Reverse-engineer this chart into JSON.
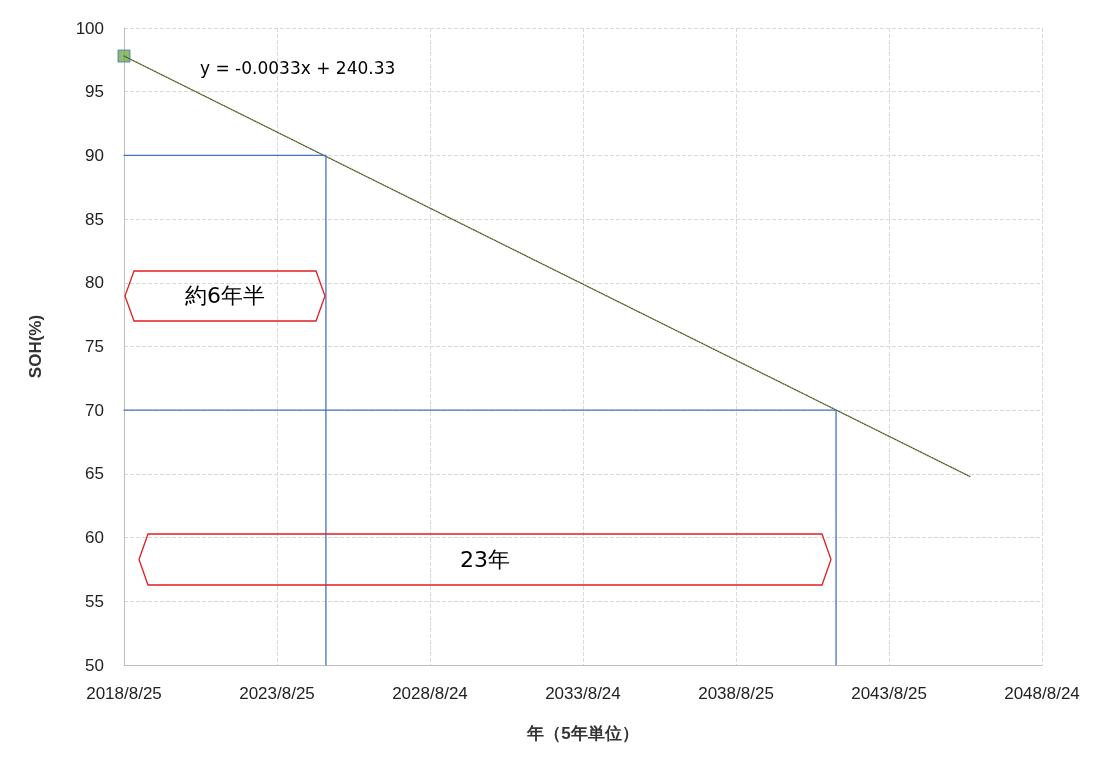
{
  "chart_data": {
    "type": "line",
    "xlabel": "年（5年単位）",
    "ylabel": "SOH(%)",
    "series": [
      {
        "type": "scatter",
        "color": "#70ad47",
        "marker": "square",
        "x": [
          "2018-08-25"
        ],
        "values": [
          97.8
        ]
      },
      {
        "color": "#4f6228",
        "line_style": "dotted",
        "marker": "none",
        "x": [
          "2018-08-25",
          "2046-04-15"
        ],
        "values": [
          97.8,
          64.8
        ]
      },
      {
        "color": "#4472c4",
        "line_style": "solid",
        "marker": "none",
        "x": [
          "2018-08-25",
          "2025-03-31",
          "2025-03-31"
        ],
        "values": [
          90,
          90,
          50
        ]
      },
      {
        "color": "#4472c4",
        "line_style": "solid",
        "marker": "none",
        "x": [
          "2018-08-25",
          "2041-12-01",
          "2041-12-01"
        ],
        "values": [
          70,
          70,
          50
        ]
      }
    ],
    "xlim": [
      "2018-08-25",
      "2048-08-24"
    ],
    "xticks": [
      {
        "value": "2018-08-25",
        "label": "2018/8/25"
      },
      {
        "value": "2023-08-25",
        "label": "2023/8/25"
      },
      {
        "value": "2028-08-24",
        "label": "2028/8/24"
      },
      {
        "value": "2033-08-24",
        "label": "2033/8/24"
      },
      {
        "value": "2038-08-25",
        "label": "2038/8/25"
      },
      {
        "value": "2043-08-25",
        "label": "2043/8/25"
      },
      {
        "value": "2048-08-24",
        "label": "2048/8/24"
      }
    ],
    "ylim": [
      50,
      100
    ],
    "yticks": [
      50,
      55,
      60,
      65,
      70,
      75,
      80,
      85,
      90,
      95,
      100
    ],
    "grid": true,
    "annotations": [
      "y = -0.0033x + 240.33",
      "約6年半",
      "23年"
    ]
  }
}
